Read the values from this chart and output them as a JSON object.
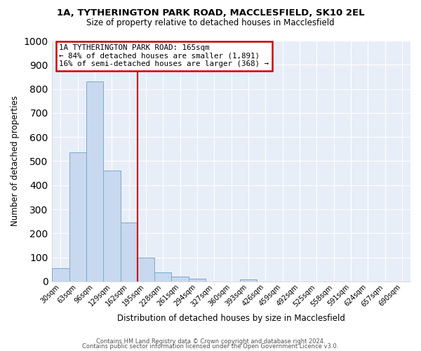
{
  "title1": "1A, TYTHERINGTON PARK ROAD, MACCLESFIELD, SK10 2EL",
  "title2": "Size of property relative to detached houses in Macclesfield",
  "xlabel": "Distribution of detached houses by size in Macclesfield",
  "ylabel": "Number of detached properties",
  "bin_labels": [
    "30sqm",
    "63sqm",
    "96sqm",
    "129sqm",
    "162sqm",
    "195sqm",
    "228sqm",
    "261sqm",
    "294sqm",
    "327sqm",
    "360sqm",
    "393sqm",
    "426sqm",
    "459sqm",
    "492sqm",
    "525sqm",
    "558sqm",
    "591sqm",
    "624sqm",
    "657sqm",
    "690sqm"
  ],
  "bin_values": [
    55,
    535,
    830,
    460,
    245,
    98,
    38,
    20,
    10,
    0,
    0,
    8,
    0,
    0,
    0,
    0,
    0,
    0,
    0,
    0,
    0
  ],
  "bar_color": "#c8d8ee",
  "bar_edge_color": "#7aaacc",
  "vline_color": "#cc0000",
  "vline_pos": 4.5,
  "annotation_title": "1A TYTHERINGTON PARK ROAD: 165sqm",
  "annotation_line1": "← 84% of detached houses are smaller (1,891)",
  "annotation_line2": "16% of semi-detached houses are larger (368) →",
  "annotation_box_color": "#ffffff",
  "annotation_box_edge": "#cc0000",
  "ylim": [
    0,
    1000
  ],
  "yticks": [
    0,
    100,
    200,
    300,
    400,
    500,
    600,
    700,
    800,
    900,
    1000
  ],
  "footer1": "Contains HM Land Registry data © Crown copyright and database right 2024.",
  "footer2": "Contains public sector information licensed under the Open Government Licence v3.0.",
  "bg_color": "#ffffff",
  "plot_bg_color": "#e8eef8",
  "grid_color": "#ffffff"
}
